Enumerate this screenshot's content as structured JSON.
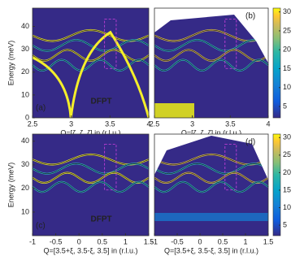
{
  "chart_data": [
    {
      "type": "heatmap",
      "panel_label": "(a)",
      "annotation": "DFPT",
      "xlabel": "Q=[ζ, ζ, ζ] in  (r.l.u.)",
      "ylabel": "Energy (meV)",
      "xlim": [
        2.5,
        4
      ],
      "xticks": [
        2.5,
        3,
        3.5,
        4
      ],
      "ylim": [
        0,
        48
      ],
      "yticks": [
        0,
        10,
        20,
        30,
        40
      ]
    },
    {
      "type": "heatmap",
      "panel_label": "(b)",
      "xlabel": "Q=[ζ, ζ, ζ] in  (r.l.u.)",
      "xlim": [
        2.5,
        4
      ],
      "xticks": [
        2.5,
        3,
        3.5,
        4
      ],
      "colorbar": {
        "lim": [
          2,
          31
        ],
        "ticks": [
          5,
          10,
          15,
          20,
          25,
          30
        ]
      }
    },
    {
      "type": "heatmap",
      "panel_label": "(c)",
      "annotation": "DFPT",
      "xlabel": "Q=[3.5+ξ, 3.5-ξ, 3.5] in (r.l.u.)",
      "ylabel": "Energy (meV)",
      "xlim": [
        -1,
        1.5
      ],
      "xticks": [
        -1,
        -0.5,
        0,
        0.5,
        1,
        1.5
      ],
      "ylim": [
        0,
        43
      ],
      "yticks": [
        10,
        20,
        30,
        40
      ]
    },
    {
      "type": "heatmap",
      "panel_label": "(d)",
      "xlabel": "Q=[3.5+ξ, 3.5-ξ, 3.5] in (r.l.u.)",
      "xlim": [
        -1,
        1.5
      ],
      "xticks": [
        -1,
        -0.5,
        0,
        0.5,
        1,
        1.5
      ],
      "colorbar": {
        "lim": [
          2,
          31
        ],
        "ticks": [
          5,
          10,
          15,
          20,
          25,
          30
        ]
      }
    }
  ]
}
